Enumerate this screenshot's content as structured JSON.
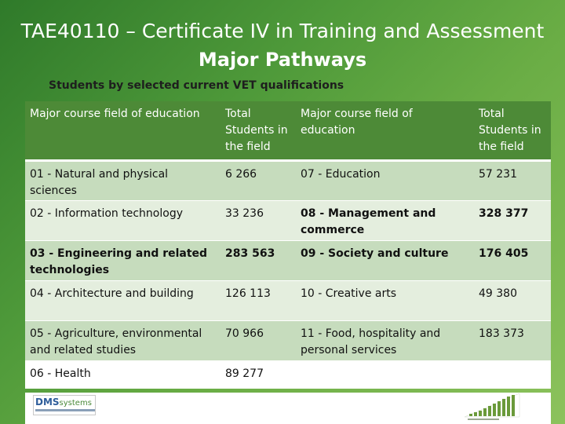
{
  "slide": {
    "title": "TAE40110 – Certificate IV in Training and Assessment",
    "subtitle": "Major Pathways",
    "caption": "Students by selected current VET qualifications"
  },
  "table": {
    "headers": [
      "Major course field of education",
      "Total Students in the field",
      "Major course field of education",
      "Total Students in the field"
    ],
    "rows": [
      {
        "field_a": "01 - Natural and physical sciences",
        "total_a": "6 266",
        "field_b": "07 - Education",
        "total_b": "57 231",
        "bold_a": false,
        "bold_b": false
      },
      {
        "field_a": "02 - Information technology",
        "total_a": "33 236",
        "field_b": "08 - Management and commerce",
        "total_b": "328 377",
        "bold_a": false,
        "bold_b": true
      },
      {
        "field_a": "03 - Engineering and related technologies",
        "total_a": "283 563",
        "field_b": "09 - Society and culture",
        "total_b": "176 405",
        "bold_a": true,
        "bold_b": true
      },
      {
        "field_a": "04 - Architecture and building",
        "total_a": "126 113",
        "field_b": "10 - Creative arts",
        "total_b": "49 380",
        "bold_a": false,
        "bold_b": false
      },
      {
        "field_a": "05 - Agriculture, environmental and related studies",
        "total_a": "70 966",
        "field_b": "11 - Food, hospitality and personal services",
        "total_b": "183 373",
        "bold_a": false,
        "bold_b": false
      },
      {
        "field_a": "06 - Health",
        "total_a": "89 277",
        "field_b": "",
        "total_b": "",
        "bold_a": false,
        "bold_b": false
      }
    ]
  },
  "logos": {
    "left": {
      "name": "DMS systems logo",
      "wordmark": "DMSsystems"
    },
    "right": {
      "name": "college logo"
    }
  },
  "colors": {
    "background_dark": "#2f7a2a",
    "background_light": "#8cc25c",
    "header_fill": "#4d8a37",
    "row_dark": "#c6dcbd",
    "row_light": "#e4eede"
  }
}
